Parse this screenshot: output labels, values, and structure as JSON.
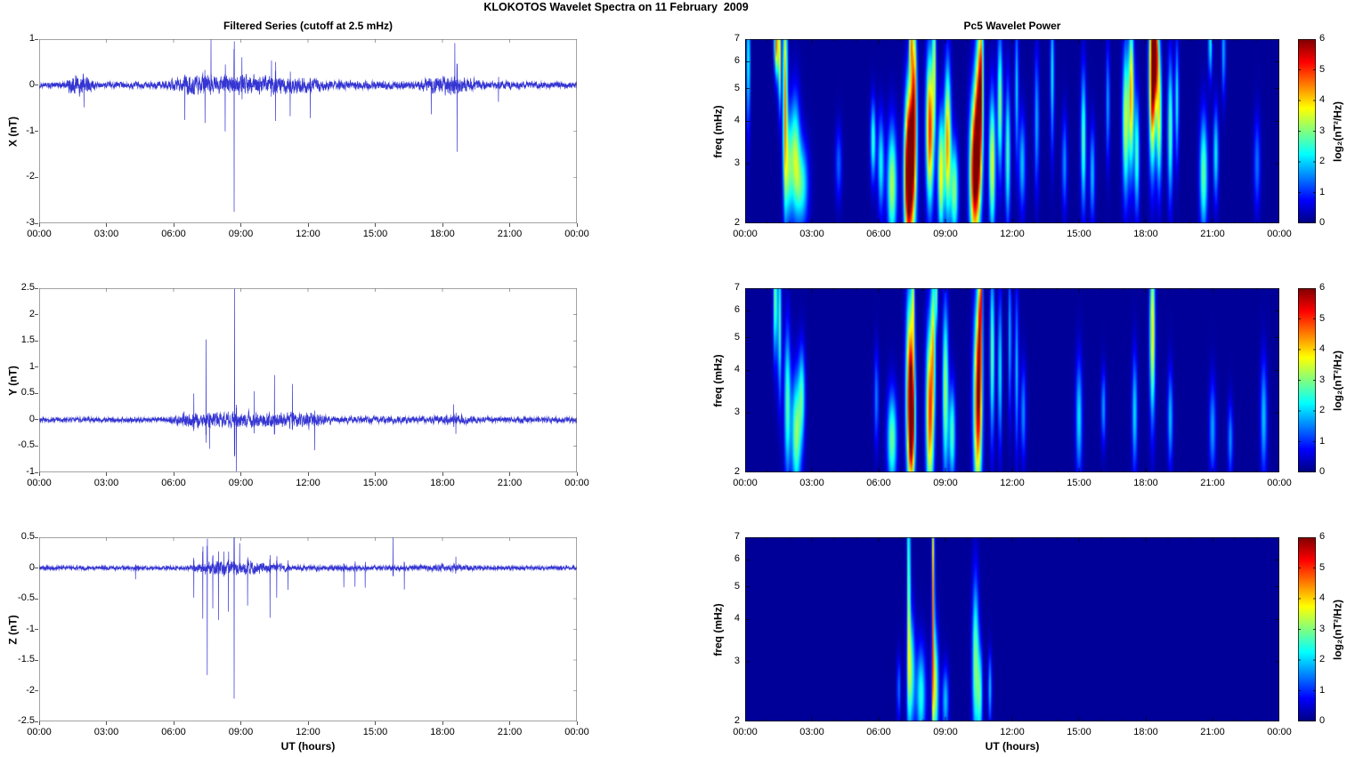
{
  "figure": {
    "title": "KLOKOTOS Wavelet Spectra on 11 February  2009"
  },
  "left_column": {
    "title": "Filtered Series (cutoff at 2.5 mHz)",
    "xlabel": "UT (hours)"
  },
  "right_column": {
    "title": "Pc5 Wavelet Power",
    "xlabel": "UT (hours)",
    "ylabel": "freq (mHz)",
    "colorbar_label": "log₂(nT²/Hz)",
    "colorbar_ticks": [
      0,
      1,
      2,
      3,
      4,
      5,
      6
    ],
    "colormap": "jet",
    "background_power": 0
  },
  "series_color": "#1e1ecd",
  "chart_data": [
    {
      "type": "line",
      "component": "X",
      "ylabel": "X (nT)",
      "ylim": [
        -3,
        1
      ],
      "yticks": [
        -3,
        -2,
        -1,
        0,
        1
      ],
      "xlim_hours": [
        0,
        24
      ],
      "xticks_hours": [
        0,
        3,
        6,
        9,
        12,
        15,
        18,
        21,
        24
      ],
      "xtick_labels": [
        "00:00",
        "03:00",
        "06:00",
        "09:00",
        "12:00",
        "15:00",
        "18:00",
        "21:00",
        "00:00"
      ],
      "noise_envelope": [
        [
          0,
          0.09
        ],
        [
          1.2,
          0.1
        ],
        [
          1.4,
          0.32
        ],
        [
          2.2,
          0.3
        ],
        [
          2.6,
          0.08
        ],
        [
          5.2,
          0.09
        ],
        [
          6.2,
          0.2
        ],
        [
          6.6,
          0.3
        ],
        [
          9.0,
          0.28
        ],
        [
          10.5,
          0.3
        ],
        [
          11.8,
          0.24
        ],
        [
          12.8,
          0.15
        ],
        [
          13.5,
          0.12
        ],
        [
          16.9,
          0.12
        ],
        [
          17.4,
          0.25
        ],
        [
          18.5,
          0.3
        ],
        [
          19.2,
          0.22
        ],
        [
          19.9,
          0.12
        ],
        [
          22.0,
          0.1
        ],
        [
          24,
          0.09
        ]
      ],
      "spikes": [
        [
          2.0,
          -0.5
        ],
        [
          6.5,
          -0.85
        ],
        [
          7.4,
          -0.95
        ],
        [
          7.67,
          0.95
        ],
        [
          8.3,
          -1.0
        ],
        [
          8.7,
          -2.8
        ],
        [
          9.05,
          0.7
        ],
        [
          10.37,
          0.65
        ],
        [
          10.55,
          -0.95
        ],
        [
          11.2,
          -0.7
        ],
        [
          12.1,
          -0.6
        ],
        [
          17.5,
          -0.55
        ],
        [
          18.55,
          0.85
        ],
        [
          18.65,
          -1.45
        ],
        [
          20.5,
          -0.4
        ]
      ]
    },
    {
      "type": "line",
      "component": "Y",
      "ylabel": "Y (nT)",
      "ylim": [
        -1,
        2.5
      ],
      "yticks": [
        -1,
        -0.5,
        0,
        0.5,
        1,
        1.5,
        2,
        2.5
      ],
      "xlim_hours": [
        0,
        24
      ],
      "xticks_hours": [
        0,
        3,
        6,
        9,
        12,
        15,
        18,
        21,
        24
      ],
      "xtick_labels": [
        "00:00",
        "03:00",
        "06:00",
        "09:00",
        "12:00",
        "15:00",
        "18:00",
        "21:00",
        "00:00"
      ],
      "noise_envelope": [
        [
          0,
          0.06
        ],
        [
          5.5,
          0.06
        ],
        [
          6.0,
          0.12
        ],
        [
          6.5,
          0.2
        ],
        [
          12.2,
          0.2
        ],
        [
          12.8,
          0.12
        ],
        [
          13.2,
          0.09
        ],
        [
          17.4,
          0.09
        ],
        [
          17.9,
          0.13
        ],
        [
          19.0,
          0.12
        ],
        [
          19.6,
          0.07
        ],
        [
          24,
          0.07
        ]
      ],
      "spikes": [
        [
          6.9,
          0.55
        ],
        [
          7.45,
          1.4
        ],
        [
          7.6,
          -0.6
        ],
        [
          8.72,
          2.45
        ],
        [
          8.8,
          -0.95
        ],
        [
          9.6,
          0.5
        ],
        [
          10.5,
          0.88
        ],
        [
          11.3,
          0.6
        ],
        [
          12.3,
          -0.5
        ],
        [
          18.5,
          0.32
        ],
        [
          18.6,
          -0.3
        ]
      ]
    },
    {
      "type": "line",
      "component": "Z",
      "ylabel": "Z (nT)",
      "ylim": [
        -2.5,
        0.5
      ],
      "yticks": [
        -2.5,
        -2,
        -1.5,
        -1,
        -0.5,
        0,
        0.5
      ],
      "xlim_hours": [
        0,
        24
      ],
      "xticks_hours": [
        0,
        3,
        6,
        9,
        12,
        15,
        18,
        21,
        24
      ],
      "xtick_labels": [
        "00:00",
        "03:00",
        "06:00",
        "09:00",
        "12:00",
        "15:00",
        "18:00",
        "21:00",
        "00:00"
      ],
      "noise_envelope": [
        [
          0,
          0.04
        ],
        [
          6.6,
          0.04
        ],
        [
          7.0,
          0.1
        ],
        [
          7.8,
          0.16
        ],
        [
          9.6,
          0.15
        ],
        [
          10.2,
          0.1
        ],
        [
          11.2,
          0.06
        ],
        [
          13.0,
          0.05
        ],
        [
          16.2,
          0.05
        ],
        [
          18.0,
          0.07
        ],
        [
          19.0,
          0.07
        ],
        [
          19.6,
          0.04
        ],
        [
          24,
          0.04
        ]
      ],
      "spikes": [
        [
          4.3,
          -0.2
        ],
        [
          6.9,
          -0.5
        ],
        [
          7.3,
          -0.9
        ],
        [
          7.5,
          -1.65
        ],
        [
          7.75,
          -0.6
        ],
        [
          8.0,
          -0.85
        ],
        [
          8.25,
          0.35
        ],
        [
          8.45,
          -0.7
        ],
        [
          8.7,
          -2.15
        ],
        [
          8.95,
          0.3
        ],
        [
          9.3,
          -0.6
        ],
        [
          10.3,
          -0.75
        ],
        [
          10.6,
          -0.5
        ],
        [
          11.1,
          -0.35
        ],
        [
          13.6,
          -0.3
        ],
        [
          14.1,
          -0.32
        ],
        [
          14.55,
          -0.3
        ],
        [
          15.8,
          0.55
        ],
        [
          16.3,
          -0.35
        ],
        [
          18.6,
          0.2
        ]
      ]
    },
    {
      "type": "heatmap",
      "component": "X",
      "ylabel": "freq (mHz)",
      "freq_scale": "log",
      "flim_mhz": [
        2,
        7
      ],
      "fticks_mhz": [
        2,
        3,
        4,
        5,
        6,
        7
      ],
      "clim": [
        0,
        6
      ],
      "xlim_hours": [
        0,
        24
      ],
      "xticks_hours": [
        0,
        3,
        6,
        9,
        12,
        15,
        18,
        21,
        24
      ],
      "xtick_labels": [
        "00:00",
        "03:00",
        "06:00",
        "09:00",
        "12:00",
        "15:00",
        "18:00",
        "21:00",
        "00:00"
      ],
      "blobs": [
        [
          0.15,
          6.0,
          0.05,
          0.25,
          2.5
        ],
        [
          1.4,
          6.8,
          0.06,
          0.12,
          4.5
        ],
        [
          1.55,
          6.3,
          0.05,
          0.2,
          3.5
        ],
        [
          1.8,
          4.8,
          0.07,
          0.4,
          4.2
        ],
        [
          1.95,
          2.9,
          0.12,
          0.2,
          2.4
        ],
        [
          2.25,
          3.2,
          0.15,
          0.22,
          2.8
        ],
        [
          2.55,
          2.6,
          0.2,
          0.16,
          2.3
        ],
        [
          4.2,
          3.0,
          0.1,
          0.14,
          1.2
        ],
        [
          5.75,
          3.5,
          0.08,
          0.15,
          2.5
        ],
        [
          6.1,
          3.0,
          0.1,
          0.18,
          2.2
        ],
        [
          6.6,
          2.6,
          0.15,
          0.22,
          3.2
        ],
        [
          7.3,
          2.7,
          0.12,
          0.28,
          5.3
        ],
        [
          7.5,
          3.2,
          0.14,
          0.32,
          5.8
        ],
        [
          7.6,
          5.5,
          0.07,
          0.28,
          3.0
        ],
        [
          7.45,
          6.9,
          0.05,
          0.12,
          3.4
        ],
        [
          8.3,
          3.8,
          0.12,
          0.28,
          5.0
        ],
        [
          8.5,
          6.0,
          0.06,
          0.26,
          2.8
        ],
        [
          8.8,
          2.8,
          0.1,
          0.22,
          3.8
        ],
        [
          9.1,
          3.5,
          0.1,
          0.28,
          4.3
        ],
        [
          9.4,
          2.5,
          0.12,
          0.18,
          3.0
        ],
        [
          10.3,
          2.8,
          0.15,
          0.28,
          5.8
        ],
        [
          10.5,
          4.0,
          0.12,
          0.3,
          5.2
        ],
        [
          10.6,
          6.0,
          0.07,
          0.26,
          3.0
        ],
        [
          11.1,
          3.0,
          0.1,
          0.26,
          3.6
        ],
        [
          11.45,
          4.5,
          0.08,
          0.26,
          3.0
        ],
        [
          11.8,
          3.2,
          0.08,
          0.26,
          2.6
        ],
        [
          12.2,
          5.0,
          0.06,
          0.26,
          1.9
        ],
        [
          12.45,
          3.0,
          0.1,
          0.18,
          1.8
        ],
        [
          13.1,
          4.0,
          0.07,
          0.26,
          1.7
        ],
        [
          13.8,
          5.5,
          0.06,
          0.28,
          2.1
        ],
        [
          14.35,
          3.0,
          0.08,
          0.18,
          1.5
        ],
        [
          15.2,
          3.5,
          0.08,
          0.26,
          2.7
        ],
        [
          15.6,
          2.8,
          0.08,
          0.18,
          1.8
        ],
        [
          16.3,
          4.5,
          0.06,
          0.22,
          1.6
        ],
        [
          17.1,
          4.0,
          0.1,
          0.28,
          3.4
        ],
        [
          17.35,
          4.8,
          0.08,
          0.28,
          4.2
        ],
        [
          17.6,
          3.2,
          0.08,
          0.22,
          2.6
        ],
        [
          18.3,
          5.5,
          0.1,
          0.32,
          6.2
        ],
        [
          18.45,
          6.5,
          0.08,
          0.18,
          5.0
        ],
        [
          18.6,
          4.2,
          0.08,
          0.26,
          3.6
        ],
        [
          19.1,
          3.8,
          0.08,
          0.26,
          2.8
        ],
        [
          19.4,
          4.6,
          0.06,
          0.22,
          2.2
        ],
        [
          20.6,
          2.8,
          0.12,
          0.22,
          2.8
        ],
        [
          20.9,
          6.8,
          0.06,
          0.13,
          2.2
        ],
        [
          21.15,
          3.2,
          0.08,
          0.18,
          2.1
        ],
        [
          21.5,
          6.5,
          0.06,
          0.18,
          1.7
        ],
        [
          23.0,
          3.0,
          0.1,
          0.18,
          1.3
        ]
      ]
    },
    {
      "type": "heatmap",
      "component": "Y",
      "ylabel": "freq (mHz)",
      "freq_scale": "log",
      "flim_mhz": [
        2,
        7
      ],
      "fticks_mhz": [
        2,
        3,
        4,
        5,
        6,
        7
      ],
      "clim": [
        0,
        6
      ],
      "xlim_hours": [
        0,
        24
      ],
      "xticks_hours": [
        0,
        3,
        6,
        9,
        12,
        15,
        18,
        21,
        24
      ],
      "xtick_labels": [
        "00:00",
        "03:00",
        "06:00",
        "09:00",
        "12:00",
        "15:00",
        "18:00",
        "21:00",
        "00:00"
      ],
      "blobs": [
        [
          1.35,
          6.5,
          0.06,
          0.22,
          3.0
        ],
        [
          1.55,
          5.5,
          0.06,
          0.28,
          2.6
        ],
        [
          1.9,
          3.2,
          0.1,
          0.28,
          2.6
        ],
        [
          2.3,
          2.6,
          0.15,
          0.22,
          3.0
        ],
        [
          2.55,
          3.4,
          0.1,
          0.18,
          2.2
        ],
        [
          5.9,
          3.3,
          0.07,
          0.18,
          1.4
        ],
        [
          6.6,
          2.5,
          0.15,
          0.18,
          2.8
        ],
        [
          7.4,
          3.5,
          0.12,
          0.36,
          5.0
        ],
        [
          7.5,
          2.8,
          0.1,
          0.22,
          4.5
        ],
        [
          7.55,
          6.3,
          0.05,
          0.22,
          2.6
        ],
        [
          8.3,
          3.0,
          0.12,
          0.32,
          4.8
        ],
        [
          8.45,
          5.0,
          0.07,
          0.28,
          3.0
        ],
        [
          8.6,
          6.8,
          0.05,
          0.13,
          2.4
        ],
        [
          9.0,
          3.5,
          0.09,
          0.32,
          3.2
        ],
        [
          9.3,
          2.6,
          0.1,
          0.18,
          2.6
        ],
        [
          10.45,
          3.2,
          0.13,
          0.36,
          5.4
        ],
        [
          10.55,
          5.2,
          0.07,
          0.28,
          3.4
        ],
        [
          10.6,
          6.8,
          0.04,
          0.13,
          2.2
        ],
        [
          11.1,
          4.5,
          0.07,
          0.32,
          2.8
        ],
        [
          11.45,
          4.0,
          0.06,
          0.28,
          2.2
        ],
        [
          11.9,
          5.0,
          0.05,
          0.28,
          1.8
        ],
        [
          12.2,
          4.0,
          0.06,
          0.3,
          1.8
        ],
        [
          12.5,
          3.0,
          0.08,
          0.18,
          1.5
        ],
        [
          15.0,
          2.9,
          0.1,
          0.22,
          2.0
        ],
        [
          16.1,
          3.1,
          0.07,
          0.14,
          1.6
        ],
        [
          17.5,
          3.0,
          0.08,
          0.22,
          2.0
        ],
        [
          18.3,
          5.2,
          0.08,
          0.32,
          3.9
        ],
        [
          19.1,
          2.9,
          0.08,
          0.18,
          1.8
        ],
        [
          21.0,
          2.7,
          0.1,
          0.18,
          1.6
        ],
        [
          21.8,
          2.5,
          0.08,
          0.14,
          1.5
        ],
        [
          23.3,
          2.9,
          0.1,
          0.22,
          1.8
        ]
      ]
    },
    {
      "type": "heatmap",
      "component": "Z",
      "ylabel": "freq (mHz)",
      "freq_scale": "log",
      "flim_mhz": [
        2,
        7
      ],
      "fticks_mhz": [
        2,
        3,
        4,
        5,
        6,
        7
      ],
      "clim": [
        0,
        6
      ],
      "xlim_hours": [
        0,
        24
      ],
      "xticks_hours": [
        0,
        3,
        6,
        9,
        12,
        15,
        18,
        21,
        24
      ],
      "xtick_labels": [
        "00:00",
        "03:00",
        "06:00",
        "09:00",
        "12:00",
        "15:00",
        "18:00",
        "21:00",
        "00:00"
      ],
      "blobs": [
        [
          6.9,
          2.5,
          0.06,
          0.12,
          1.3
        ],
        [
          7.35,
          5.0,
          0.05,
          0.45,
          3.0
        ],
        [
          7.45,
          2.8,
          0.12,
          0.22,
          2.7
        ],
        [
          7.9,
          2.4,
          0.15,
          0.18,
          2.3
        ],
        [
          8.45,
          4.5,
          0.04,
          0.5,
          4.3
        ],
        [
          8.55,
          2.5,
          0.1,
          0.22,
          3.0
        ],
        [
          9.0,
          2.3,
          0.1,
          0.13,
          1.8
        ],
        [
          10.35,
          3.0,
          0.1,
          0.3,
          3.0
        ],
        [
          10.55,
          2.4,
          0.08,
          0.18,
          2.4
        ],
        [
          11.0,
          2.5,
          0.06,
          0.13,
          1.8
        ]
      ]
    }
  ]
}
